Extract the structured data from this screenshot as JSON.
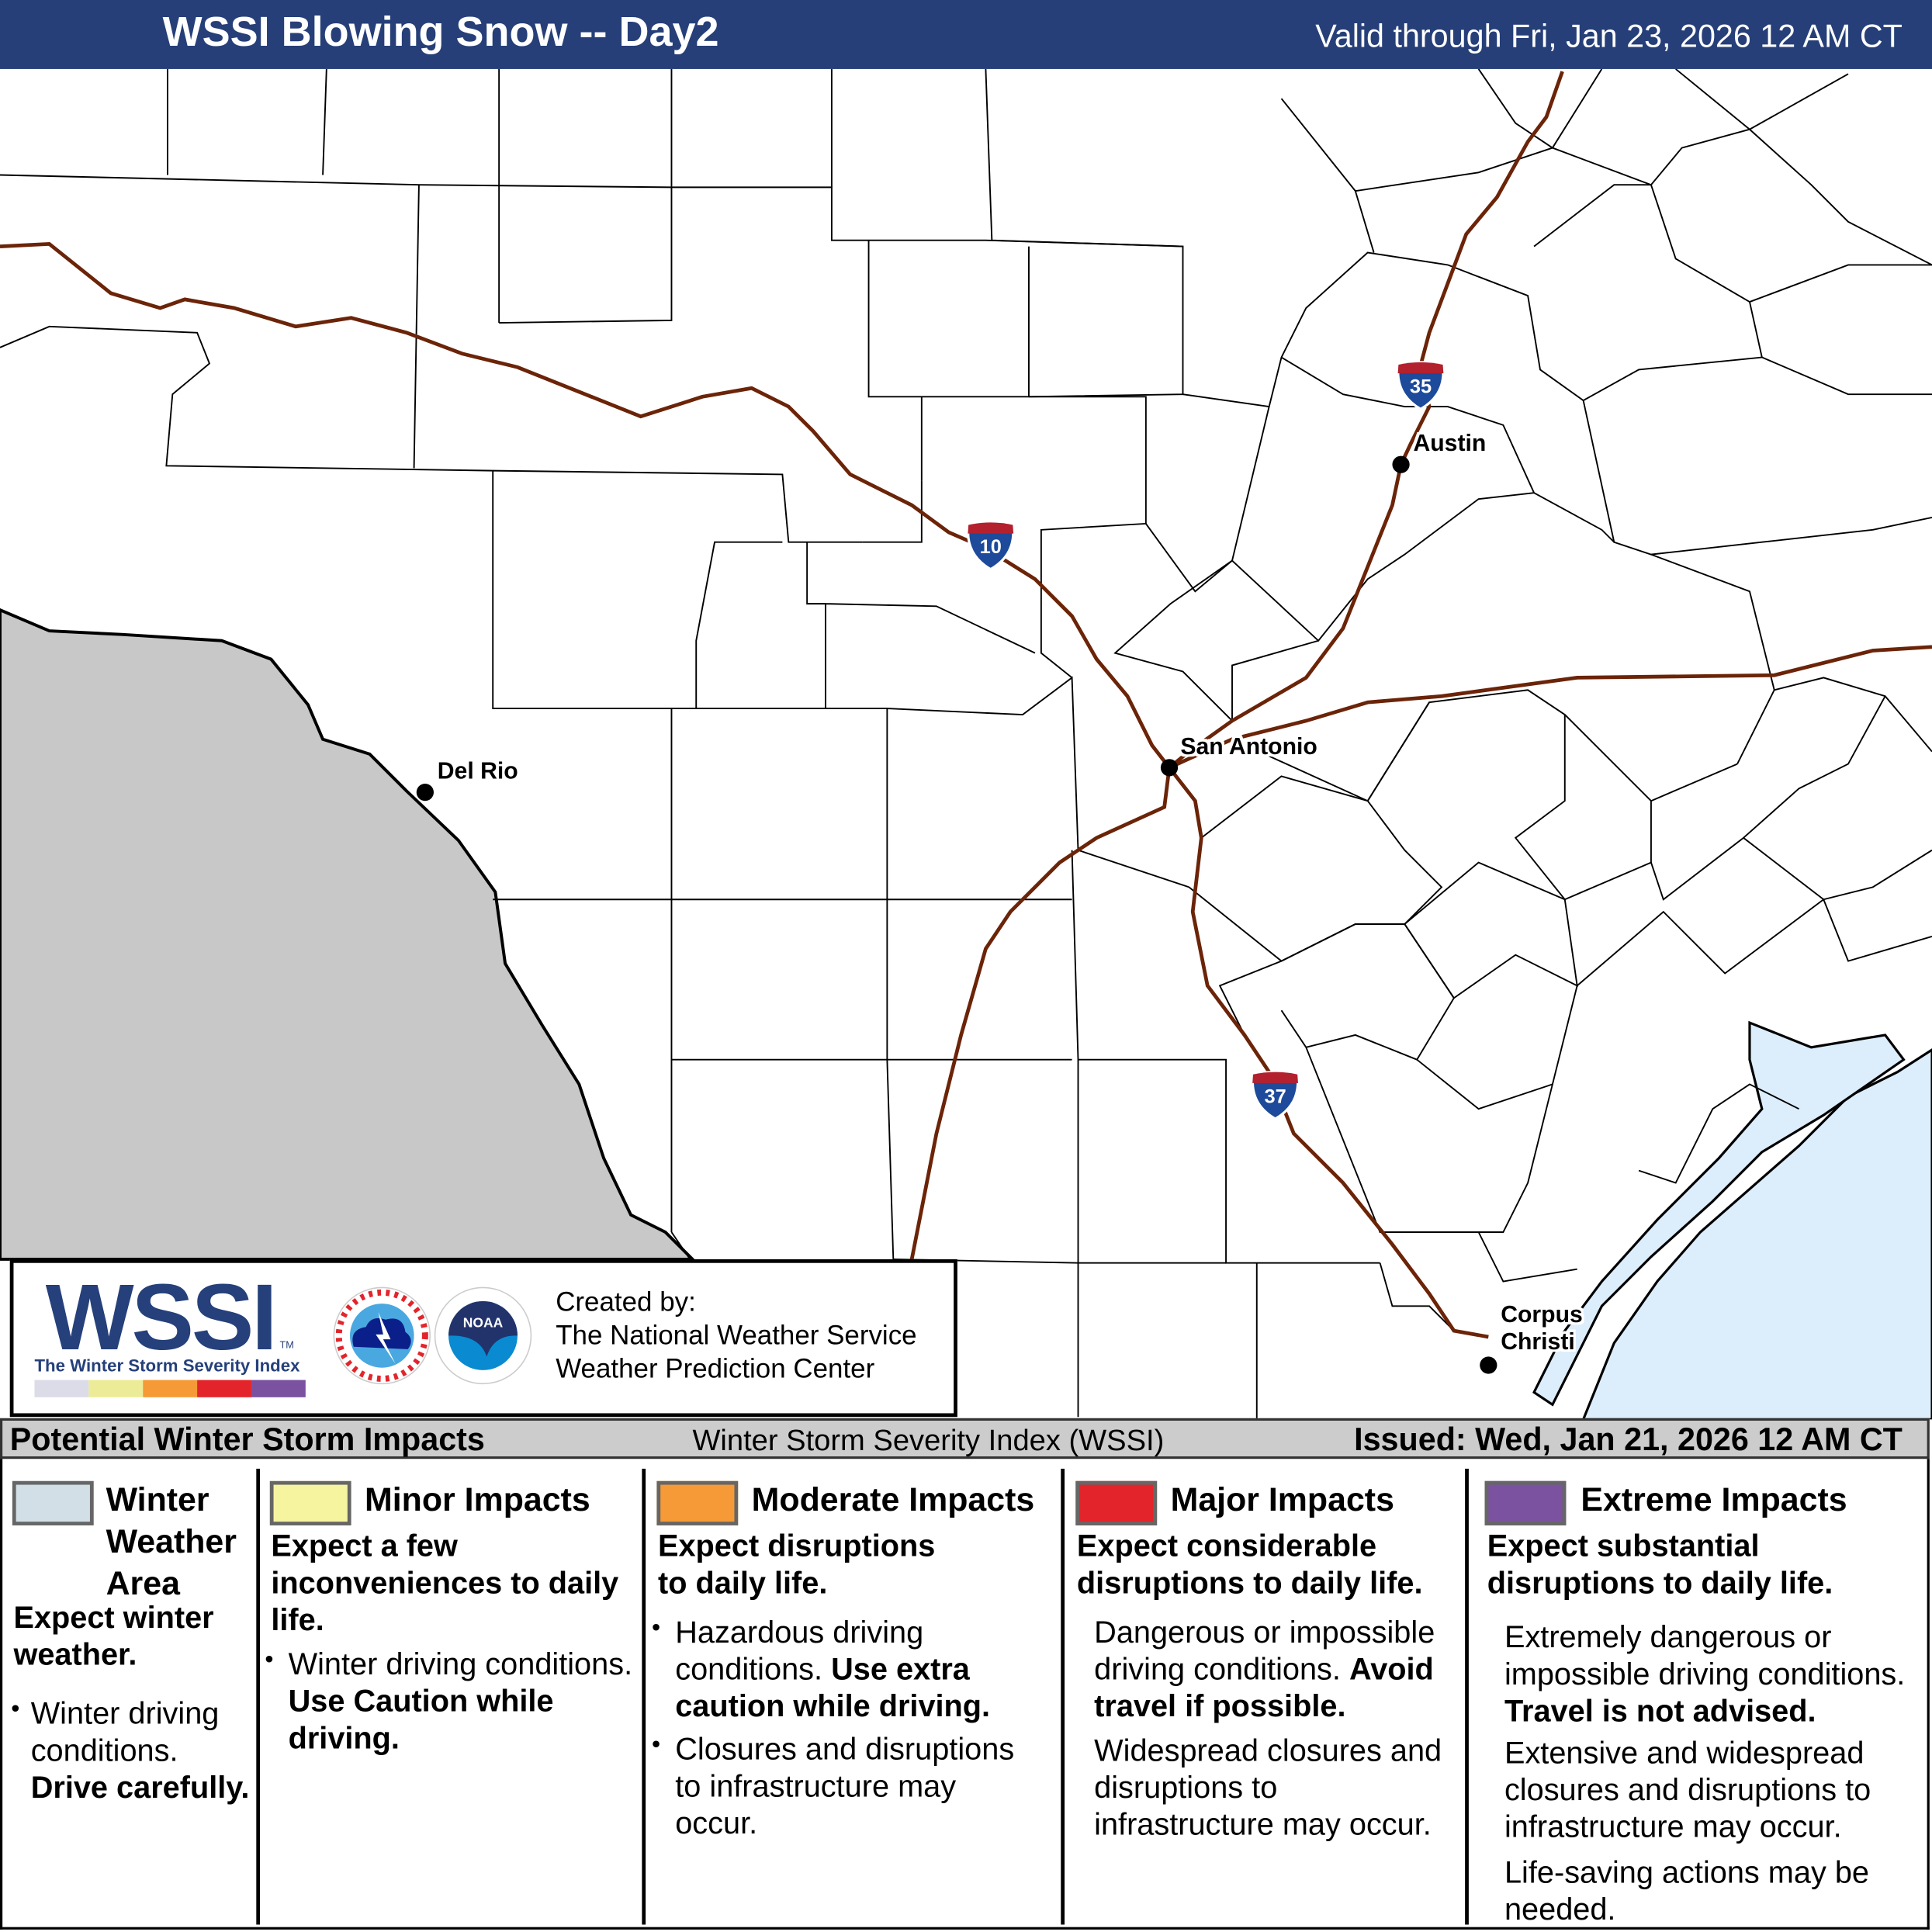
{
  "header": {
    "title": "WSSI Blowing Snow -- Day2",
    "valid": "Valid through Fri, Jan 23, 2026 12 AM CT",
    "background": "#263f78"
  },
  "map": {
    "colors": {
      "mexico": "#c8c8c8",
      "water": "#dcedfc",
      "roads": "#6b2408",
      "counties": "#000000"
    },
    "cities": [
      {
        "name": "Del Rio"
      },
      {
        "name": "San Antonio"
      },
      {
        "name": "Austin"
      },
      {
        "name": "Corpus Christi"
      }
    ],
    "interstates": [
      {
        "number": "10"
      },
      {
        "number": "35"
      },
      {
        "number": "37"
      }
    ]
  },
  "logo": {
    "wssi": "WSSI",
    "tm": "TM",
    "subtitle": "The Winter Storm Severity Index",
    "bar_colors": [
      "#dcdbe8",
      "#ecec98",
      "#f59a36",
      "#e3242b",
      "#7a52a0"
    ],
    "nws_text": "NATIONAL WEATHER SERVICE",
    "noaa_text": "NOAA",
    "created_by": "Created by:",
    "org1": "The National Weather Service",
    "org2": "Weather Prediction Center"
  },
  "legend": {
    "heading": "Potential Winter Storm Impacts",
    "index_name": "Winter Storm Severity Index (WSSI)",
    "issued": "Issued: Wed, Jan 21, 2026 12 AM CT",
    "categories": [
      {
        "label": "Winter Weather Area",
        "color": "#d3dfe6",
        "lead": "Expect winter weather.",
        "bullet1": "Winter driving conditions.",
        "bullet1_bold": "Drive carefully."
      },
      {
        "label": "Minor Impacts",
        "color": "#f7f4a0",
        "lead": "Expect a few inconveniences to daily life.",
        "bullet1": "Winter driving conditions.",
        "bullet1_bold": "Use Caution while driving."
      },
      {
        "label": "Moderate Impacts",
        "color": "#f59a36",
        "lead": "Expect disruptions to daily life.",
        "bullet1": "Hazardous driving conditions.",
        "bullet1_bold": "Use extra caution while driving.",
        "bullet2": "Closures and disruptions to infrastructure may occur."
      },
      {
        "label": "Major Impacts",
        "color": "#e3242b",
        "lead": "Expect considerable disruptions to daily life.",
        "bullet1": "Dangerous or impossible driving conditions.",
        "bullet1_bold": "Avoid travel if possible.",
        "bullet2": "Widespread closures and disruptions to infrastructure may occur."
      },
      {
        "label": "Extreme Impacts",
        "color": "#7a52a0",
        "lead": "Expect substantial disruptions to daily life.",
        "bullet1": "Extremely dangerous or impossible driving conditions.",
        "bullet1_bold": "Travel is not advised.",
        "bullet2": "Extensive and widespread closures and disruptions to infrastructure may occur.",
        "bullet3": "Life-saving actions may be needed."
      }
    ]
  }
}
